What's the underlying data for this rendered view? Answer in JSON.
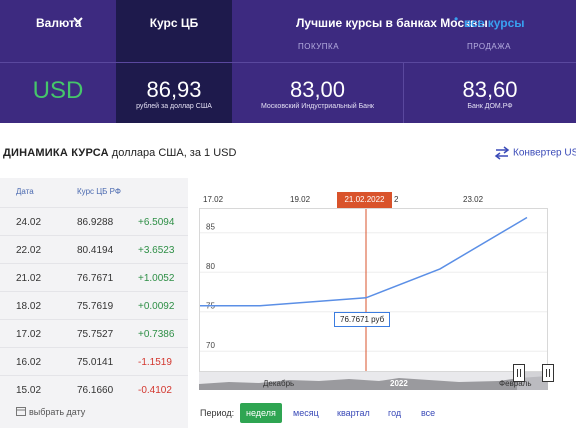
{
  "header": {
    "currency_label": "Валюта",
    "cb_label": "Курс ЦБ",
    "best_label": "Лучшие курсы в банках Москвы",
    "all_rates_link": "все курсы",
    "buy_label": "ПОКУПКА",
    "sell_label": "ПРОДАЖА"
  },
  "rates": {
    "currency": "USD",
    "cb_value": "86,93",
    "cb_note": "рублей за доллар США",
    "buy_value": "83,00",
    "buy_bank": "Московский Индустриальный Банк",
    "sell_value": "83,60",
    "sell_bank": "Банк ДОМ.РФ"
  },
  "dynamics": {
    "title_bold": "ДИНАМИКА КУРСА",
    "title_rest": " доллара США, за 1 USD",
    "converter_link": "Конвертер USD"
  },
  "table": {
    "col_date": "Дата",
    "col_rate": "Курс ЦБ РФ",
    "rows": [
      {
        "date": "24.02",
        "rate": "86.9288",
        "change": "+6.5094",
        "dir": "up"
      },
      {
        "date": "22.02",
        "rate": "80.4194",
        "change": "+3.6523",
        "dir": "up"
      },
      {
        "date": "21.02",
        "rate": "76.7671",
        "change": "+1.0052",
        "dir": "up"
      },
      {
        "date": "18.02",
        "rate": "75.7619",
        "change": "+0.0092",
        "dir": "up"
      },
      {
        "date": "17.02",
        "rate": "75.7527",
        "change": "+0.7386",
        "dir": "up"
      },
      {
        "date": "16.02",
        "rate": "75.0141",
        "change": "-1.1519",
        "dir": "down"
      },
      {
        "date": "15.02",
        "rate": "76.1660",
        "change": "-0.4102",
        "dir": "down"
      }
    ],
    "pick_date": "выбрать дату"
  },
  "chart_data": {
    "type": "line",
    "x_ticks": [
      "17.02",
      "19.02",
      "2",
      "23.02"
    ],
    "selected_date": "21.02.2022",
    "tooltip": "76.7671 руб",
    "y_ticks": [
      85,
      80,
      75,
      70
    ],
    "ylim": [
      67.5,
      88
    ],
    "series": [
      {
        "x": [
          "17.02",
          "18.02",
          "21.02",
          "22.02",
          "24.02"
        ],
        "values": [
          75.7527,
          75.7619,
          76.7671,
          80.4194,
          86.9288
        ]
      }
    ],
    "navigator_labels": [
      "Декабрь",
      "2022",
      "Февраль"
    ]
  },
  "period": {
    "label": "Период:",
    "options": [
      "неделя",
      "месяц",
      "квартал",
      "год",
      "все"
    ],
    "active": "неделя"
  },
  "colors": {
    "panel": "#3d2a80",
    "panel_dark": "#1e1a4c",
    "usd": "#45c66a",
    "up": "#2e8f46",
    "down": "#d3362e",
    "badge": "#d9532b",
    "line": "#5b8fe6",
    "active_period": "#2fa552"
  }
}
